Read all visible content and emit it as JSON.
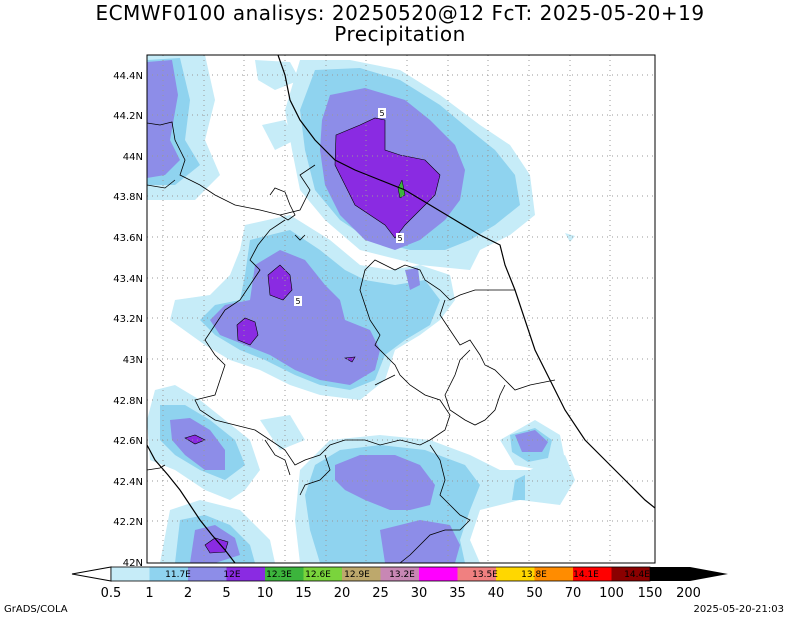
{
  "title": {
    "line1": "ECMWF0100 analisys: 20250520@12 FcT: 2025-05-20+19",
    "line2": "Precipitation"
  },
  "latitude_labels": [
    "44.4N",
    "44.2N",
    "44N",
    "43.8N",
    "43.6N",
    "43.4N",
    "43.2N",
    "43N",
    "42.8N",
    "42.6N",
    "42.4N",
    "42.2N",
    "42N"
  ],
  "colorbar": {
    "bounds": [
      "0.5",
      "1",
      "2",
      "5",
      "10",
      "15",
      "20",
      "25",
      "30",
      "35",
      "40",
      "50",
      "70",
      "100",
      "150",
      "200"
    ],
    "swatch_labels": [
      "11.7E",
      "12E",
      "12.3E",
      "12.6E",
      "12.9E",
      "13.2E",
      "13.5E",
      "13.8E",
      "14.1E",
      "14.4E"
    ],
    "colors": [
      "#c6ecf8",
      "#8fd3ef",
      "#8d8de8",
      "#8a2be2",
      "#3cb43c",
      "#7ad43c",
      "#bda86c",
      "#c887b4",
      "#ff00ff",
      "#f08080",
      "#ffd700",
      "#ff8c00",
      "#ff0000",
      "#8b0000"
    ]
  },
  "contour_labels": [
    "5",
    "5",
    "5"
  ],
  "credits": {
    "left": "GrADS/COLA",
    "right": "2025-05-20-21:03"
  }
}
